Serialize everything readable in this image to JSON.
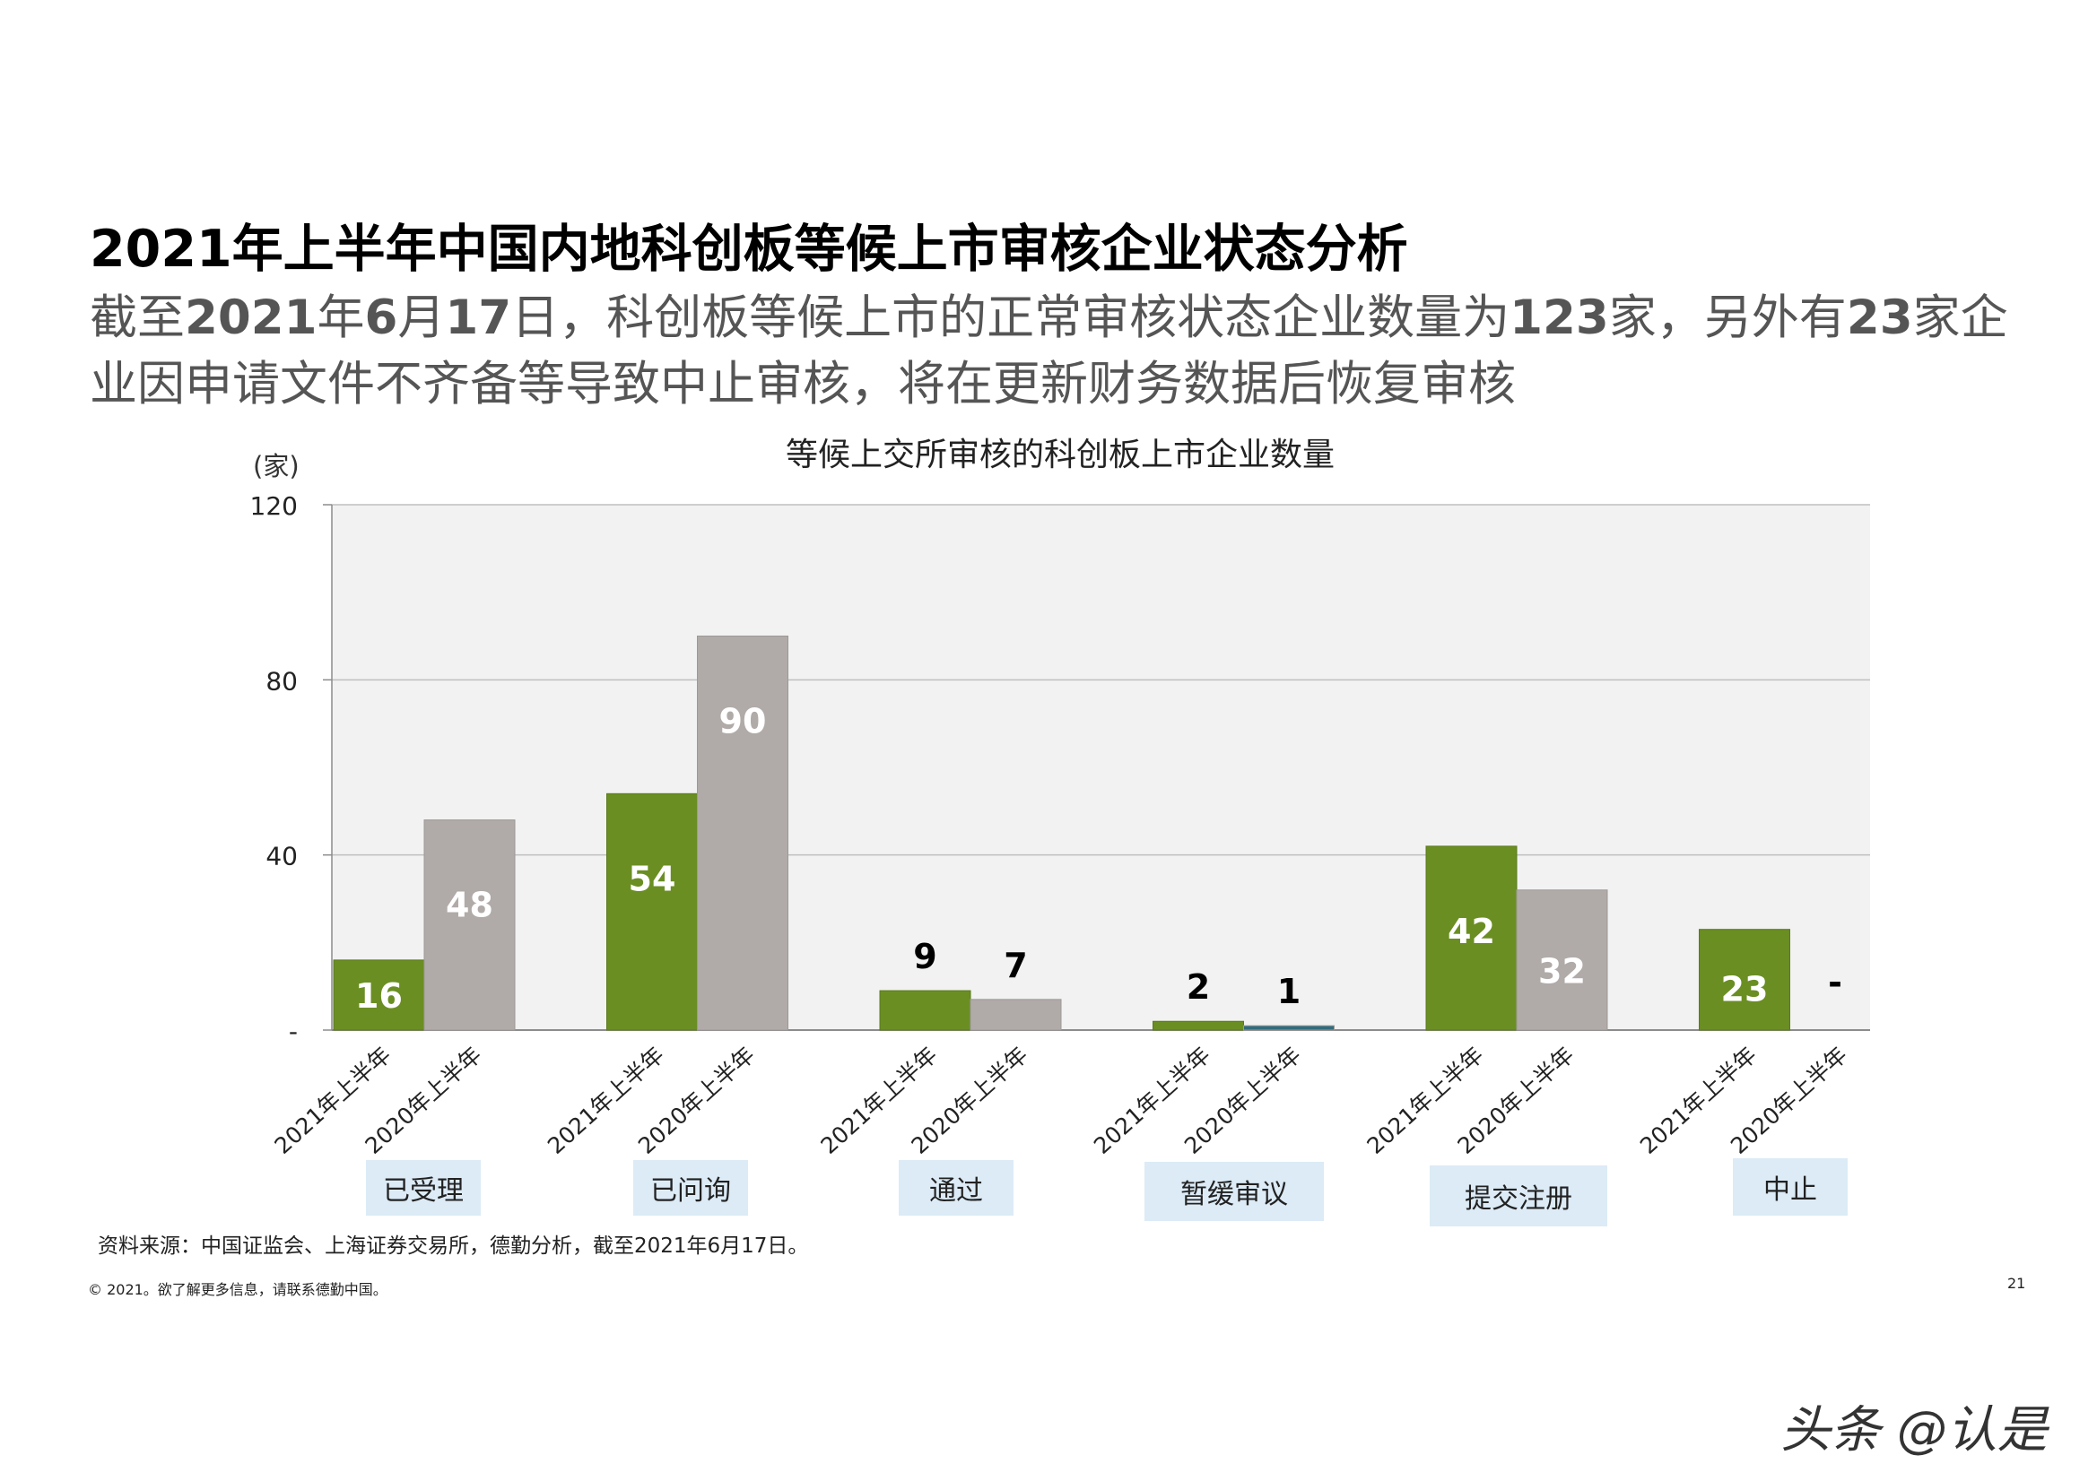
{
  "page": {
    "title": "2021年上半年中国内地科创板等候上市审核企业状态分析",
    "subtitle_parts": [
      {
        "text": "截至",
        "bold": false
      },
      {
        "text": "2021",
        "bold": true
      },
      {
        "text": "年",
        "bold": false
      },
      {
        "text": "6",
        "bold": true
      },
      {
        "text": "月",
        "bold": false
      },
      {
        "text": "17",
        "bold": true
      },
      {
        "text": "日，科创板等候上市的正常审核状态企业数量为",
        "bold": false
      },
      {
        "text": "123",
        "bold": true
      },
      {
        "text": "家，另外有",
        "bold": false
      },
      {
        "text": "23",
        "bold": true
      },
      {
        "text": "家企业因申请文件不齐备等导致中止审核，将在更新财务数据后恢复审核",
        "bold": false
      }
    ],
    "source": "资料来源：中国证监会、上海证券交易所，德勤分析，截至2021年6月17日。",
    "copyright": "© 2021。欲了解更多信息，请联系德勤中国。",
    "page_number": "21",
    "watermark": "头条 @认是"
  },
  "chart_data": {
    "type": "bar",
    "title": "等候上交所审核的科创板上市企业数量",
    "ylabel": "(家)",
    "ylim": [
      0,
      120
    ],
    "yticks": [
      0,
      40,
      80,
      120
    ],
    "ytick_labels": [
      "-",
      "40",
      "80",
      "120"
    ],
    "grid": true,
    "categories": [
      "已受理",
      "已问询",
      "通过",
      "暂缓审议",
      "提交注册",
      "中止"
    ],
    "series": [
      {
        "name": "2021年上半年",
        "color": "#6b8e23",
        "values": [
          16,
          54,
          9,
          2,
          42,
          23
        ],
        "labels": [
          "16",
          "54",
          "9",
          "2",
          "42",
          "23"
        ]
      },
      {
        "name": "2020年上半年",
        "color": "#b0aba8",
        "values": [
          48,
          90,
          7,
          1,
          32,
          0
        ],
        "labels": [
          "48",
          "90",
          "7",
          "1",
          "32",
          "-"
        ]
      }
    ],
    "colors": {
      "grid_bg": "#f2f2f2",
      "gridline": "#bfbfbf",
      "category_box": "#dcebf6",
      "teal_bar": "#2f6d7e"
    }
  }
}
